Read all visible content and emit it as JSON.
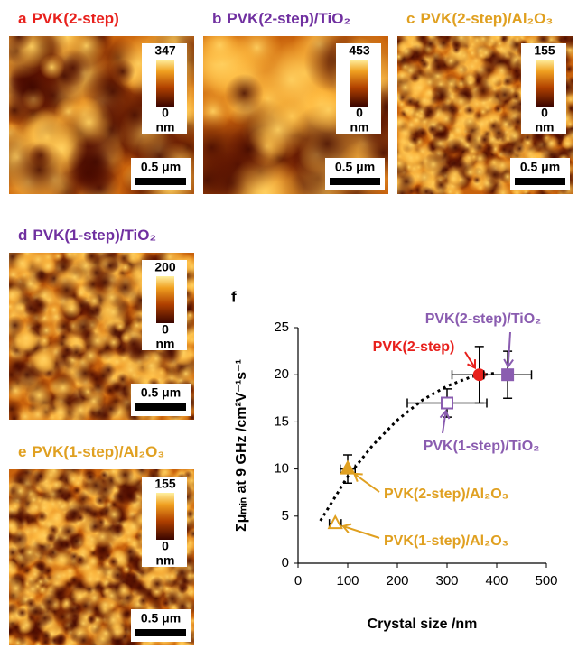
{
  "panels": [
    {
      "letter": "a",
      "title": "PVK(2-step)",
      "color": "#e8201c",
      "colorbar_max": 347,
      "colorbar_min": 0,
      "unit": "nm",
      "scale_bar": "0.5 μm"
    },
    {
      "letter": "b",
      "title": "PVK(2-step)/TiO₂",
      "color": "#7030a0",
      "colorbar_max": 453,
      "colorbar_min": 0,
      "unit": "nm",
      "scale_bar": "0.5 μm"
    },
    {
      "letter": "c",
      "title": "PVK(2-step)/Al₂O₃",
      "color": "#e0a020",
      "colorbar_max": 155,
      "colorbar_min": 0,
      "unit": "nm",
      "scale_bar": "0.5 μm"
    },
    {
      "letter": "d",
      "title": "PVK(1-step)/TiO₂",
      "color": "#7030a0",
      "colorbar_max": 200,
      "colorbar_min": 0,
      "unit": "nm",
      "scale_bar": "0.5 μm"
    },
    {
      "letter": "e",
      "title": "PVK(1-step)/Al₂O₃",
      "color": "#e0a020",
      "colorbar_max": 155,
      "colorbar_min": 0,
      "unit": "nm",
      "scale_bar": "0.5 μm"
    }
  ],
  "chart_data": {
    "type": "scatter",
    "letter": "f",
    "x_label": "Crystal size /nm",
    "y_label": "Σμₘᵢₙ at 9 GHz /cm²V⁻¹s⁻¹",
    "xlim": [
      0,
      500
    ],
    "xticks": [
      0,
      100,
      200,
      300,
      400,
      500
    ],
    "ylim": [
      0,
      25
    ],
    "yticks": [
      0,
      5,
      10,
      15,
      20,
      25
    ],
    "series": [
      {
        "name": "PVK(2-step)",
        "color": "#e8201c",
        "marker": "circle",
        "filled": true,
        "x": [
          365
        ],
        "y": [
          20
        ],
        "xerr": [
          55
        ],
        "yerr": [
          3
        ]
      },
      {
        "name": "PVK(2-step)/TiO₂",
        "color": "#8a5cb0",
        "marker": "square",
        "filled": true,
        "x": [
          422
        ],
        "y": [
          20
        ],
        "xerr": [
          48
        ],
        "yerr": [
          2.5
        ]
      },
      {
        "name": "PVK(1-step)/TiO₂",
        "color": "#8a5cb0",
        "marker": "square",
        "filled": false,
        "x": [
          300
        ],
        "y": [
          17
        ],
        "xerr": [
          80
        ],
        "yerr": [
          1.5
        ]
      },
      {
        "name": "PVK(2-step)/Al₂O₃",
        "color": "#e0a020",
        "marker": "triangle",
        "filled": true,
        "x": [
          100
        ],
        "y": [
          10
        ],
        "xerr": [
          15
        ],
        "yerr": [
          1.5
        ]
      },
      {
        "name": "PVK(1-step)/Al₂O₃",
        "color": "#e0a020",
        "marker": "triangle",
        "filled": false,
        "x": [
          75
        ],
        "y": [
          4.2
        ],
        "xerr": [
          12
        ],
        "yerr": [
          0
        ]
      }
    ],
    "fit": {
      "x": [
        45,
        100,
        150,
        200,
        250,
        300,
        350,
        400
      ],
      "y": [
        4.5,
        9.2,
        12.5,
        15.2,
        17.3,
        18.8,
        19.8,
        20.2
      ]
    }
  }
}
